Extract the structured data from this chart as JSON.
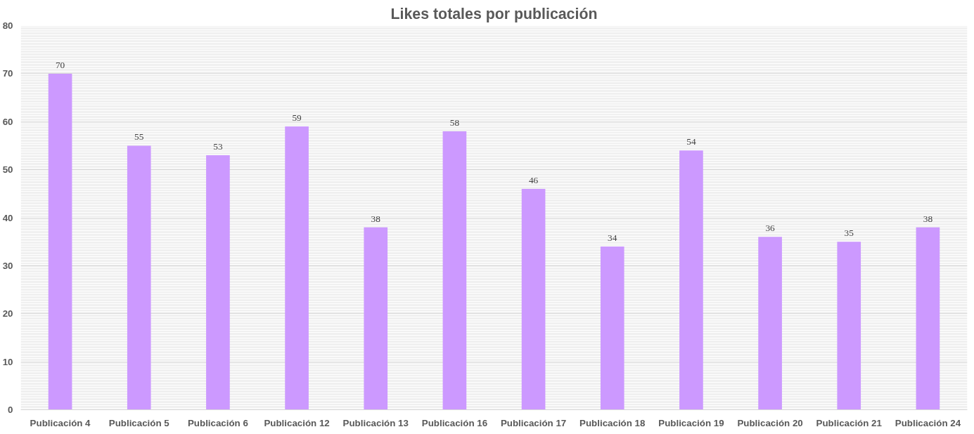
{
  "chart_data": {
    "type": "bar",
    "title": "Likes totales por publicación",
    "categories": [
      "Publicación 4",
      "Publicación 5",
      "Publicación 6",
      "Publicación 12",
      "Publicación 13",
      "Publicación 16",
      "Publicación 17",
      "Publicación 18",
      "Publicación 19",
      "Publicación 20",
      "Publicación 21",
      "Publicación 24"
    ],
    "values": [
      70,
      55,
      53,
      59,
      38,
      58,
      46,
      34,
      54,
      36,
      35,
      38
    ],
    "color": "#cc99ff",
    "ylim": [
      0,
      80
    ],
    "yticks": [
      0,
      10,
      20,
      30,
      40,
      50,
      60,
      70,
      80
    ],
    "grid": "y",
    "data_labels": true
  }
}
